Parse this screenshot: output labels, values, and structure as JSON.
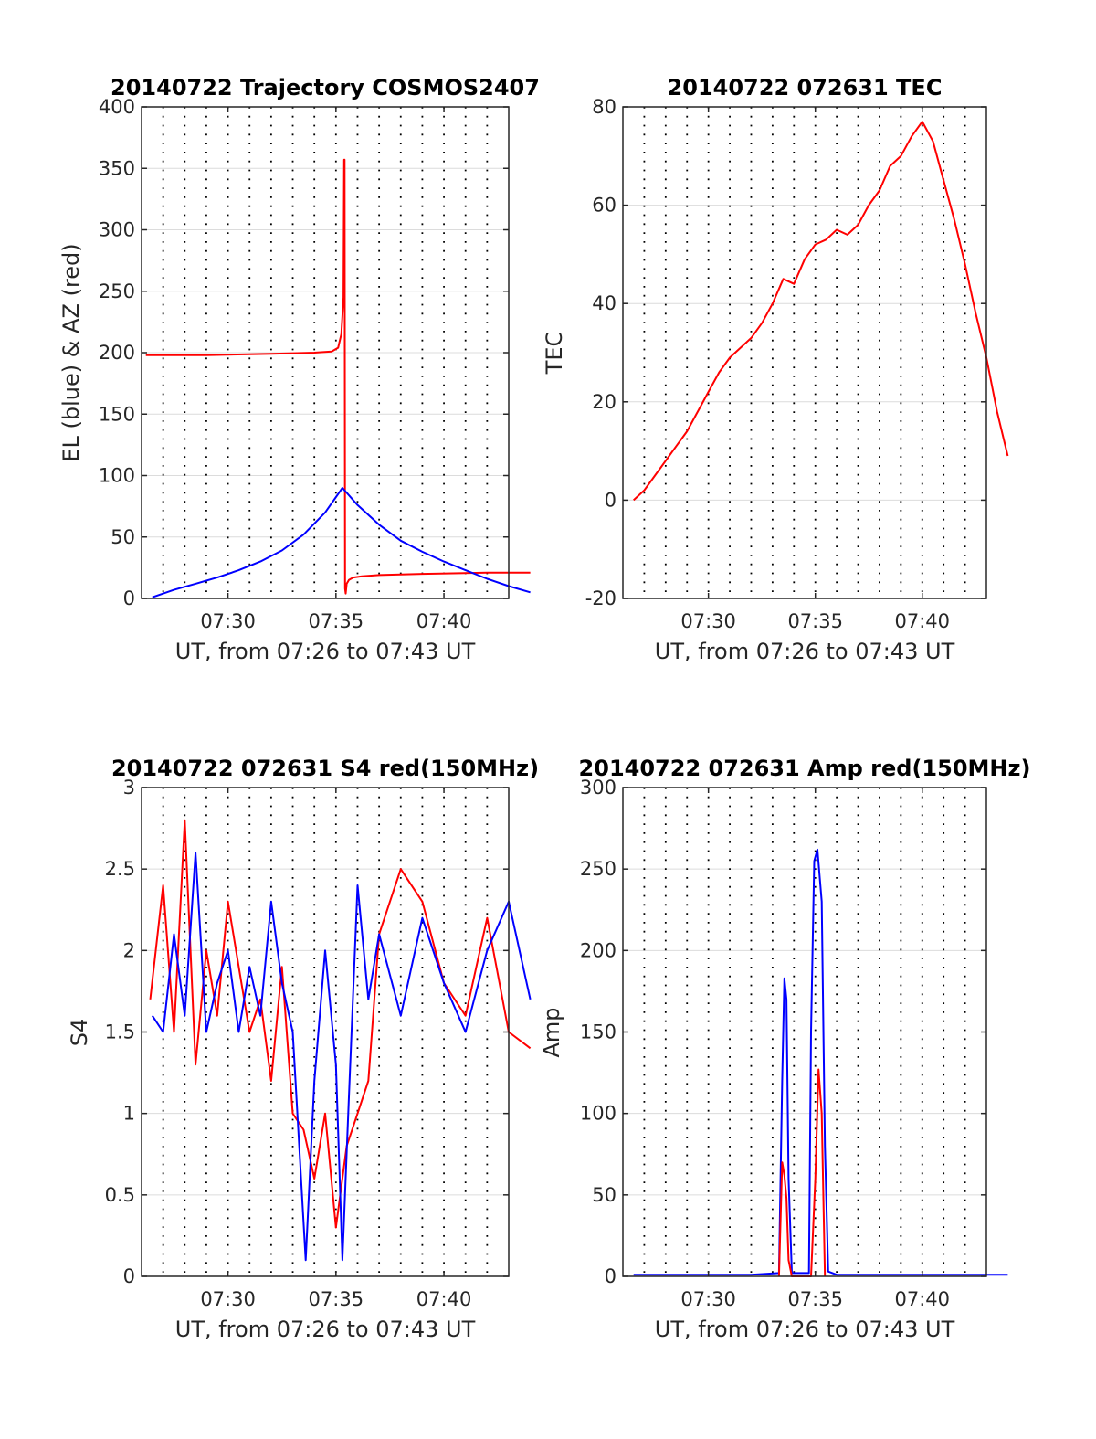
{
  "figure": {
    "background": "#ffffff",
    "axis_color": "#262626",
    "grid_color": "#dcdcdc"
  },
  "chart_data": [
    {
      "type": "line",
      "title": "20140722 Trajectory COSMOS2407",
      "xlabel": "UT, from 07:26 to 07:43 UT",
      "ylabel": "EL (blue) & AZ (red)",
      "xlim": [
        446,
        1043
      ],
      "ylim": [
        0,
        400
      ],
      "xticks": [
        450,
        455,
        460
      ],
      "xtick_labels": [
        "07:30",
        "07:35",
        "07:40"
      ],
      "yticks": [
        0,
        50,
        100,
        150,
        200,
        250,
        300,
        350,
        400
      ],
      "ytick_labels": [
        "0",
        "50",
        "100",
        "150",
        "200",
        "250",
        "300",
        "350",
        "400"
      ],
      "grid": "horizontal solid, vertical dotted every 1 min",
      "series": [
        {
          "color": "#ff0000",
          "x": [
            446.2,
            449,
            452,
            454,
            454.8,
            455.1,
            455.25,
            455.35,
            455.38,
            455.4,
            455.42,
            455.45,
            455.5,
            455.6,
            455.8,
            456.2,
            457,
            459,
            462,
            464
          ],
          "y": [
            198,
            198,
            199,
            200,
            201,
            204,
            215,
            245,
            357,
            357,
            8,
            4,
            12,
            15,
            17,
            18,
            19,
            20,
            21,
            21
          ]
        },
        {
          "color": "#0000ff",
          "x": [
            446.5,
            447.5,
            448.5,
            449.5,
            450.5,
            451.5,
            452.5,
            453.5,
            454.5,
            455.3,
            456,
            457,
            458,
            459,
            460,
            461,
            462,
            463,
            464
          ],
          "y": [
            1,
            7,
            12,
            17,
            23,
            30,
            39,
            52,
            70,
            90,
            76,
            60,
            47,
            38,
            30,
            23,
            16,
            10,
            5
          ]
        }
      ]
    },
    {
      "type": "line",
      "title": "20140722 072631 TEC",
      "xlabel": "UT, from 07:26 to 07:43 UT",
      "ylabel": "TEC",
      "xlim": [
        446,
        1043
      ],
      "ylim": [
        -20,
        80
      ],
      "xticks": [
        450,
        455,
        460
      ],
      "xtick_labels": [
        "07:30",
        "07:35",
        "07:40"
      ],
      "yticks": [
        -20,
        0,
        20,
        40,
        60,
        80
      ],
      "ytick_labels": [
        "-20",
        "0",
        "20",
        "40",
        "60",
        "80"
      ],
      "grid": "horizontal solid, vertical dotted every 1 min",
      "series": [
        {
          "color": "#ff0000",
          "x": [
            446.5,
            447,
            447.5,
            448,
            448.5,
            449,
            449.5,
            450,
            450.5,
            451,
            451.5,
            452,
            452.5,
            453,
            453.5,
            454,
            454.5,
            455,
            455.5,
            456,
            456.5,
            457,
            457.5,
            458,
            458.5,
            459,
            459.5,
            460,
            460.5,
            461,
            461.5,
            462,
            462.5,
            463,
            463.5,
            464
          ],
          "y": [
            0,
            2,
            5,
            8,
            11,
            14,
            18,
            22,
            26,
            29,
            31,
            33,
            36,
            40,
            45,
            44,
            49,
            52,
            53,
            55,
            54,
            56,
            60,
            63,
            68,
            70,
            74,
            77,
            73,
            65,
            57,
            48,
            38,
            29,
            18,
            9
          ]
        }
      ]
    },
    {
      "type": "line",
      "title": "20140722 072631 S4 red(150MHz)",
      "xlabel": "UT, from 07:26 to 07:43 UT",
      "ylabel": "S4",
      "xlim": [
        446,
        1043
      ],
      "ylim": [
        0,
        3
      ],
      "xticks": [
        450,
        455,
        460
      ],
      "xtick_labels": [
        "07:30",
        "07:35",
        "07:40"
      ],
      "yticks": [
        0,
        0.5,
        1,
        1.5,
        2,
        2.5,
        3
      ],
      "ytick_labels": [
        "0",
        "0.5",
        "1",
        "1.5",
        "2",
        "2.5",
        "3"
      ],
      "grid": "horizontal solid, vertical dotted every 1 min",
      "series": [
        {
          "color": "#ff0000",
          "x": [
            446.4,
            447,
            447.5,
            448,
            448.5,
            449,
            449.5,
            450,
            450.5,
            451,
            451.5,
            452,
            452.5,
            453,
            453.5,
            454,
            454.5,
            455,
            455.5,
            456,
            456.5,
            457,
            458,
            459,
            460,
            461,
            462,
            463,
            464
          ],
          "y": [
            1.7,
            2.4,
            1.5,
            2.8,
            1.3,
            2.0,
            1.6,
            2.3,
            1.9,
            1.5,
            1.7,
            1.2,
            1.9,
            1.0,
            0.9,
            0.6,
            1.0,
            0.3,
            0.8,
            1.0,
            1.2,
            2.1,
            2.5,
            2.3,
            1.8,
            1.6,
            2.2,
            1.5,
            1.4
          ]
        },
        {
          "color": "#0000ff",
          "x": [
            446.5,
            447,
            447.5,
            448,
            448.5,
            449,
            449.5,
            450,
            450.5,
            451,
            451.5,
            452,
            452.5,
            453,
            453.3,
            453.6,
            454,
            454.5,
            455,
            455.3,
            455.6,
            456,
            456.5,
            457,
            458,
            459,
            460,
            461,
            462,
            463,
            464
          ],
          "y": [
            1.6,
            1.5,
            2.1,
            1.6,
            2.6,
            1.5,
            1.8,
            2.0,
            1.5,
            1.9,
            1.6,
            2.3,
            1.8,
            1.5,
            0.8,
            0.1,
            1.2,
            2.0,
            1.3,
            0.1,
            1.1,
            2.4,
            1.7,
            2.1,
            1.6,
            2.2,
            1.8,
            1.5,
            2.0,
            2.3,
            1.7
          ]
        }
      ]
    },
    {
      "type": "line",
      "title": "20140722 072631 Amp red(150MHz)",
      "xlabel": "UT, from 07:26 to 07:43 UT",
      "ylabel": "Amp",
      "xlim": [
        446,
        1043
      ],
      "ylim": [
        0,
        300
      ],
      "xticks": [
        450,
        455,
        460
      ],
      "xtick_labels": [
        "07:30",
        "07:35",
        "07:40"
      ],
      "yticks": [
        0,
        50,
        100,
        150,
        200,
        250,
        300
      ],
      "ytick_labels": [
        "0",
        "50",
        "100",
        "150",
        "200",
        "250",
        "300"
      ],
      "grid": "horizontal solid, vertical dotted every 1 min",
      "series": [
        {
          "color": "#0000ff",
          "x": [
            446.5,
            452,
            453.3,
            453.45,
            453.55,
            453.65,
            453.75,
            453.9,
            454.7,
            454.8,
            454.95,
            455.1,
            455.3,
            455.45,
            455.6,
            456,
            464
          ],
          "y": [
            1,
            1,
            2,
            120,
            183,
            170,
            60,
            2,
            2,
            150,
            255,
            262,
            230,
            80,
            3,
            1,
            1
          ]
        },
        {
          "color": "#ff0000",
          "x": [
            453.3,
            453.45,
            453.55,
            453.65,
            453.75,
            453.9,
            454.8,
            455.0,
            455.15,
            455.3,
            455.45
          ],
          "y": [
            0,
            70,
            62,
            48,
            10,
            0,
            0,
            60,
            127,
            100,
            0
          ]
        }
      ]
    }
  ]
}
